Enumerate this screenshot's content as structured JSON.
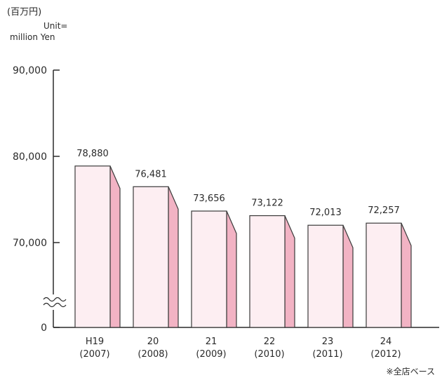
{
  "unit": {
    "jp": "(百万円)",
    "en_line1": "Unit=",
    "en_line2": "million Yen"
  },
  "note": "※全店ベース",
  "chart_data": {
    "type": "bar",
    "categories": [
      [
        "H19",
        "(2007)"
      ],
      [
        "20",
        "(2008)"
      ],
      [
        "21",
        "(2009)"
      ],
      [
        "22",
        "(2010)"
      ],
      [
        "23",
        "(2011)"
      ],
      [
        "24",
        "(2012)"
      ]
    ],
    "values": [
      78880,
      76481,
      73656,
      73122,
      72013,
      72257
    ],
    "value_labels": [
      "78,880",
      "76,481",
      "73,656",
      "73,122",
      "72,013",
      "72,257"
    ],
    "y_ticks": [
      {
        "value": 90000,
        "label": "90,000"
      },
      {
        "value": 80000,
        "label": "80,000"
      },
      {
        "value": 70000,
        "label": "70,000"
      },
      {
        "value": 0,
        "label": "0"
      }
    ],
    "ylim": [
      0,
      90000
    ],
    "axis_break": "between 0 and 70,000",
    "grid": false,
    "bar_color": "#fdeef2",
    "bar_side_color": "#f2b3c4",
    "bar_edge_color": "#3a3a3a"
  }
}
